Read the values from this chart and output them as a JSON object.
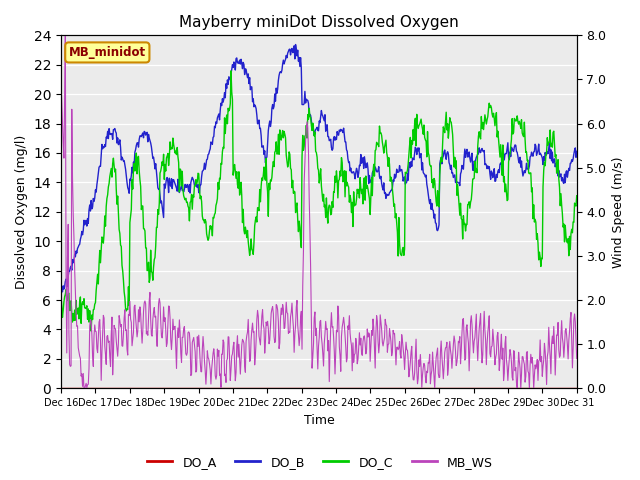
{
  "title": "Mayberry miniDot Dissolved Oxygen",
  "ylabel_left": "Dissolved Oxygen (mg/l)",
  "ylabel_right": "Wind Speed (m/s)",
  "xlabel": "Time",
  "ylim_left": [
    0,
    24
  ],
  "ylim_right": [
    0.0,
    8.0
  ],
  "yticks_left": [
    0,
    2,
    4,
    6,
    8,
    10,
    12,
    14,
    16,
    18,
    20,
    22,
    24
  ],
  "yticks_right": [
    0.0,
    1.0,
    2.0,
    3.0,
    4.0,
    5.0,
    6.0,
    7.0,
    8.0
  ],
  "xticklabels": [
    "Dec 16",
    "Dec 17",
    "Dec 18",
    "Dec 19",
    "Dec 20",
    "Dec 21",
    "Dec 22",
    "Dec 23",
    "Dec 24",
    "Dec 25",
    "Dec 26",
    "Dec 27",
    "Dec 28",
    "Dec 29",
    "Dec 30",
    "Dec 31"
  ],
  "color_DO_A": "#cc0000",
  "color_DO_B": "#2222cc",
  "color_DO_C": "#00cc00",
  "color_MB_WS": "#bb44bb",
  "annotation_text": "MB_minidot",
  "annotation_facecolor": "#ffff99",
  "annotation_edgecolor": "#cc8800",
  "bg_color": "#ebebeb",
  "legend_labels": [
    "DO_A",
    "DO_B",
    "DO_C",
    "MB_WS"
  ],
  "title_fontsize": 11,
  "figsize": [
    6.4,
    4.8
  ],
  "dpi": 100
}
